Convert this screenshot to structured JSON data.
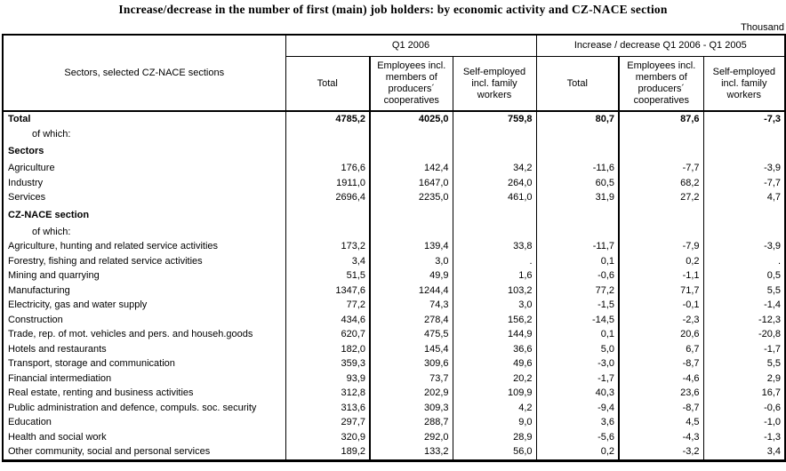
{
  "title": "Increase/decrease in the number of first (main) job holders: by economic activity and CZ-NACE section",
  "unit_label": "Thousand",
  "chart_data": {
    "type": "table",
    "title": "Increase/decrease in the number of first (main) job holders: by economic activity and CZ-NACE section",
    "unit": "Thousand",
    "row_header": "Sectors, selected CZ-NACE sections",
    "column_groups": [
      "Q1 2006",
      "Increase / decrease Q1 2006 - Q1 2005"
    ],
    "sub_columns": [
      "Total",
      "Employees incl. members of producers´ cooperatives",
      "Self-employed incl. family workers",
      "Total",
      "Employees incl. members of producers´ cooperatives",
      "Self-employed incl. family workers"
    ],
    "rows": [
      {
        "label": "Total",
        "bold": true,
        "bold_values": true,
        "values": [
          "4785,2",
          "4025,0",
          "759,8",
          "80,7",
          "87,6",
          "-7,3"
        ]
      },
      {
        "label": "of which:",
        "indent": true,
        "values": [
          "",
          "",
          "",
          "",
          "",
          ""
        ]
      },
      {
        "label": "Sectors",
        "bold": true,
        "section": true,
        "values": [
          "",
          "",
          "",
          "",
          "",
          ""
        ]
      },
      {
        "label": "Agriculture",
        "values": [
          "176,6",
          "142,4",
          "34,2",
          "-11,6",
          "-7,7",
          "-3,9"
        ]
      },
      {
        "label": "Industry",
        "values": [
          "1911,0",
          "1647,0",
          "264,0",
          "60,5",
          "68,2",
          "-7,7"
        ]
      },
      {
        "label": "Services",
        "values": [
          "2696,4",
          "2235,0",
          "461,0",
          "31,9",
          "27,2",
          "4,7"
        ]
      },
      {
        "label": "CZ-NACE section",
        "bold": true,
        "section": true,
        "values": [
          "",
          "",
          "",
          "",
          "",
          ""
        ]
      },
      {
        "label": "of which:",
        "indent": true,
        "values": [
          "",
          "",
          "",
          "",
          "",
          ""
        ]
      },
      {
        "label": "Agriculture, hunting and related service activities",
        "values": [
          "173,2",
          "139,4",
          "33,8",
          "-11,7",
          "-7,9",
          "-3,9"
        ]
      },
      {
        "label": "Forestry, fishing and related service activities",
        "values": [
          "3,4",
          "3,0",
          ".",
          "0,1",
          "0,2",
          "."
        ]
      },
      {
        "label": "Mining and quarrying",
        "values": [
          "51,5",
          "49,9",
          "1,6",
          "-0,6",
          "-1,1",
          "0,5"
        ]
      },
      {
        "label": "Manufacturing",
        "values": [
          "1347,6",
          "1244,4",
          "103,2",
          "77,2",
          "71,7",
          "5,5"
        ]
      },
      {
        "label": "Electricity, gas and water supply",
        "values": [
          "77,2",
          "74,3",
          "3,0",
          "-1,5",
          "-0,1",
          "-1,4"
        ]
      },
      {
        "label": "Construction",
        "values": [
          "434,6",
          "278,4",
          "156,2",
          "-14,5",
          "-2,3",
          "-12,3"
        ]
      },
      {
        "label": "Trade, rep. of mot. vehicles and pers. and househ.goods",
        "values": [
          "620,7",
          "475,5",
          "144,9",
          "0,1",
          "20,6",
          "-20,8"
        ]
      },
      {
        "label": "Hotels and restaurants",
        "values": [
          "182,0",
          "145,4",
          "36,6",
          "5,0",
          "6,7",
          "-1,7"
        ]
      },
      {
        "label": "Transport, storage and communication",
        "values": [
          "359,3",
          "309,6",
          "49,6",
          "-3,0",
          "-8,7",
          "5,5"
        ]
      },
      {
        "label": "Financial intermediation",
        "values": [
          "93,9",
          "73,7",
          "20,2",
          "-1,7",
          "-4,6",
          "2,9"
        ]
      },
      {
        "label": "Real estate, renting and business activities",
        "values": [
          "312,8",
          "202,9",
          "109,9",
          "40,3",
          "23,6",
          "16,7"
        ]
      },
      {
        "label": "Public administration and defence, compuls. soc. security",
        "values": [
          "313,6",
          "309,3",
          "4,2",
          "-9,4",
          "-8,7",
          "-0,6"
        ]
      },
      {
        "label": "Education",
        "values": [
          "297,7",
          "288,7",
          "9,0",
          "3,6",
          "4,5",
          "-1,0"
        ]
      },
      {
        "label": "Health and social work",
        "values": [
          "320,9",
          "292,0",
          "28,9",
          "-5,6",
          "-4,3",
          "-1,3"
        ]
      },
      {
        "label": "Other community, social and personal services",
        "values": [
          "189,2",
          "133,2",
          "56,0",
          "0,2",
          "-3,2",
          "3,4"
        ]
      }
    ]
  }
}
